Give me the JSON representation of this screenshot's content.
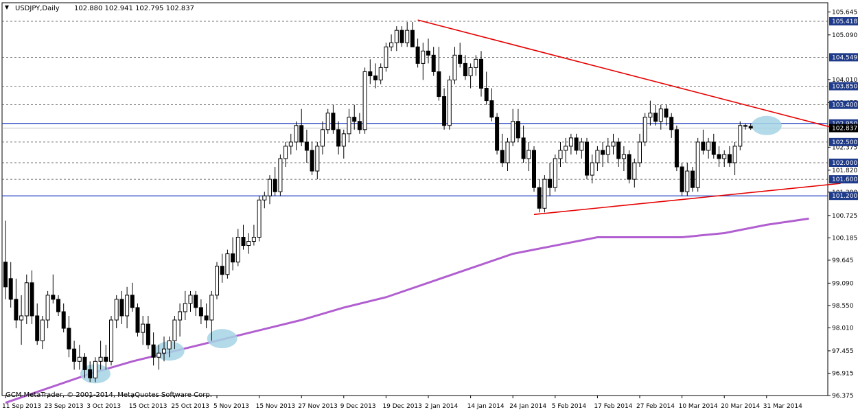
{
  "header": {
    "symbol": "USDJPY,Daily",
    "ohlc": "102.880 102.941 102.795 102.837"
  },
  "footer": {
    "copyright": "GCM MetaTrader, © 2001-2014, MetaQuotes Software Corp."
  },
  "colors": {
    "bull_fill": "#ffffff",
    "bear_fill": "#000000",
    "candle_outline": "#000000",
    "trendline": "#e60000",
    "support_line": "#2040c0",
    "moving_average": "#b15fd0",
    "highlight": "#a6d4e4",
    "level_line": "#444444",
    "level_label_bg": "#1e3a8a",
    "current_price_bg": "#000000"
  },
  "chart_data": {
    "type": "candlestick",
    "y_range": [
      96.375,
      105.8
    ],
    "y_ticks": [
      "105.645",
      "105.090",
      "104.010",
      "103.455",
      "102.375",
      "101.820",
      "101.290",
      "100.725",
      "100.185",
      "99.645",
      "99.090",
      "98.550",
      "98.010",
      "97.455",
      "96.915",
      "96.375"
    ],
    "x_ticks": [
      {
        "label": "11 Sep 2013",
        "x": 0
      },
      {
        "label": "23 Sep 2013",
        "x": 8
      },
      {
        "label": "3 Oct 2013",
        "x": 16
      },
      {
        "label": "15 Oct 2013",
        "x": 24
      },
      {
        "label": "25 Oct 2013",
        "x": 32
      },
      {
        "label": "5 Nov 2013",
        "x": 40
      },
      {
        "label": "15 Nov 2013",
        "x": 48
      },
      {
        "label": "27 Nov 2013",
        "x": 56
      },
      {
        "label": "9 Dec 2013",
        "x": 64
      },
      {
        "label": "19 Dec 2013",
        "x": 72
      },
      {
        "label": "2 Jan 2014",
        "x": 80
      },
      {
        "label": "14 Jan 2014",
        "x": 88
      },
      {
        "label": "24 Jan 2014",
        "x": 96
      },
      {
        "label": "5 Feb 2014",
        "x": 104
      },
      {
        "label": "17 Feb 2014",
        "x": 112
      },
      {
        "label": "27 Feb 2014",
        "x": 120
      },
      {
        "label": "10 Mar 2014",
        "x": 128
      },
      {
        "label": "20 Mar 2014",
        "x": 136
      },
      {
        "label": "31 Mar 2014",
        "x": 144
      }
    ],
    "horizontal_levels": [
      {
        "label": "105.418",
        "value": 105.418,
        "style": "dashed"
      },
      {
        "label": "104.549",
        "value": 104.549,
        "style": "dashed"
      },
      {
        "label": "103.850",
        "value": 103.85,
        "style": "dashed"
      },
      {
        "label": "103.400",
        "value": 103.4,
        "style": "dashed"
      },
      {
        "label": "102.950",
        "value": 102.95,
        "style": "solid-blue"
      },
      {
        "label": "102.500",
        "value": 102.5,
        "style": "dashed"
      },
      {
        "label": "102.000",
        "value": 102.0,
        "style": "dashed"
      },
      {
        "label": "101.600",
        "value": 101.6,
        "style": "dashed"
      },
      {
        "label": "101.200",
        "value": 101.2,
        "style": "solid-blue"
      }
    ],
    "current_price": {
      "label": "102.837",
      "value": 102.837
    },
    "candles": [
      [
        99.6,
        100.6,
        98.7,
        99.0
      ],
      [
        99.2,
        99.6,
        98.5,
        98.7
      ],
      [
        98.7,
        99.2,
        98.0,
        98.2
      ],
      [
        98.2,
        98.8,
        97.6,
        98.3
      ],
      [
        98.3,
        99.3,
        98.1,
        99.1
      ],
      [
        99.1,
        99.4,
        98.1,
        98.3
      ],
      [
        98.3,
        98.6,
        97.6,
        97.7
      ],
      [
        97.7,
        98.3,
        97.5,
        98.2
      ],
      [
        98.2,
        98.9,
        98.0,
        98.8
      ],
      [
        98.8,
        99.3,
        98.6,
        98.7
      ],
      [
        98.7,
        98.8,
        98.3,
        98.4
      ],
      [
        98.4,
        98.6,
        97.9,
        98.0
      ],
      [
        98.0,
        98.3,
        97.3,
        97.5
      ],
      [
        97.5,
        97.7,
        97.0,
        97.2
      ],
      [
        97.2,
        97.6,
        97.0,
        97.3
      ],
      [
        97.3,
        97.4,
        96.8,
        97.0
      ],
      [
        97.0,
        97.2,
        96.7,
        96.8
      ],
      [
        96.8,
        97.3,
        96.7,
        97.2
      ],
      [
        97.2,
        97.7,
        97.0,
        97.3
      ],
      [
        97.3,
        97.6,
        97.0,
        97.2
      ],
      [
        97.2,
        98.3,
        97.1,
        98.2
      ],
      [
        98.2,
        98.8,
        98.0,
        98.7
      ],
      [
        98.7,
        98.9,
        98.1,
        98.3
      ],
      [
        98.3,
        99.0,
        98.0,
        98.8
      ],
      [
        98.8,
        99.1,
        98.4,
        98.5
      ],
      [
        98.5,
        98.6,
        97.8,
        97.9
      ],
      [
        97.9,
        98.3,
        97.6,
        98.1
      ],
      [
        98.1,
        98.3,
        97.5,
        97.6
      ],
      [
        97.6,
        97.9,
        97.1,
        97.3
      ],
      [
        97.3,
        97.6,
        97.0,
        97.4
      ],
      [
        97.4,
        97.8,
        97.2,
        97.5
      ],
      [
        97.5,
        97.8,
        97.3,
        97.7
      ],
      [
        97.7,
        98.3,
        97.5,
        98.2
      ],
      [
        98.2,
        98.6,
        97.8,
        98.4
      ],
      [
        98.4,
        98.9,
        98.2,
        98.6
      ],
      [
        98.6,
        98.9,
        98.4,
        98.8
      ],
      [
        98.8,
        98.9,
        98.3,
        98.5
      ],
      [
        98.5,
        98.7,
        98.1,
        98.3
      ],
      [
        98.3,
        98.6,
        98.0,
        98.2
      ],
      [
        98.2,
        98.9,
        97.7,
        98.8
      ],
      [
        98.8,
        99.6,
        98.7,
        99.5
      ],
      [
        99.5,
        99.8,
        99.1,
        99.3
      ],
      [
        99.3,
        99.9,
        99.2,
        99.8
      ],
      [
        99.8,
        100.2,
        99.4,
        99.6
      ],
      [
        99.6,
        100.4,
        99.5,
        100.2
      ],
      [
        100.2,
        100.5,
        99.9,
        100.0
      ],
      [
        100.0,
        100.3,
        99.8,
        100.1
      ],
      [
        100.1,
        100.5,
        100.0,
        100.2
      ],
      [
        100.2,
        101.2,
        100.1,
        101.1
      ],
      [
        101.1,
        101.3,
        100.9,
        101.2
      ],
      [
        101.2,
        101.7,
        101.0,
        101.6
      ],
      [
        101.6,
        101.9,
        101.2,
        101.3
      ],
      [
        101.3,
        102.2,
        101.2,
        102.1
      ],
      [
        102.1,
        102.5,
        101.9,
        102.4
      ],
      [
        102.4,
        102.7,
        102.2,
        102.5
      ],
      [
        102.5,
        103.0,
        102.3,
        102.9
      ],
      [
        102.9,
        103.3,
        102.4,
        102.5
      ],
      [
        102.5,
        102.8,
        102.0,
        102.3
      ],
      [
        102.3,
        102.5,
        101.7,
        101.8
      ],
      [
        101.8,
        102.5,
        101.6,
        102.4
      ],
      [
        102.4,
        103.0,
        102.2,
        102.8
      ],
      [
        102.8,
        103.3,
        102.7,
        103.2
      ],
      [
        103.2,
        103.4,
        102.7,
        102.8
      ],
      [
        102.8,
        103.0,
        102.2,
        102.4
      ],
      [
        102.4,
        102.8,
        102.1,
        102.7
      ],
      [
        102.7,
        103.3,
        102.5,
        103.1
      ],
      [
        103.1,
        103.4,
        102.8,
        103.0
      ],
      [
        103.0,
        103.2,
        102.7,
        102.8
      ],
      [
        102.8,
        104.3,
        102.7,
        104.2
      ],
      [
        104.2,
        104.5,
        103.9,
        104.1
      ],
      [
        104.1,
        104.4,
        103.8,
        104.0
      ],
      [
        104.0,
        104.4,
        103.9,
        104.3
      ],
      [
        104.3,
        104.9,
        104.2,
        104.8
      ],
      [
        104.8,
        105.1,
        104.7,
        104.9
      ],
      [
        104.9,
        105.3,
        104.7,
        105.2
      ],
      [
        105.2,
        105.3,
        104.8,
        104.9
      ],
      [
        104.9,
        105.4,
        104.8,
        105.2
      ],
      [
        105.2,
        105.4,
        104.8,
        104.8
      ],
      [
        104.8,
        105.0,
        104.3,
        104.4
      ],
      [
        104.4,
        104.9,
        104.0,
        104.7
      ],
      [
        104.7,
        105.0,
        104.4,
        104.6
      ],
      [
        104.6,
        104.8,
        104.1,
        104.2
      ],
      [
        104.2,
        104.8,
        103.5,
        103.6
      ],
      [
        103.6,
        103.8,
        102.8,
        102.9
      ],
      [
        102.9,
        104.1,
        102.8,
        104.0
      ],
      [
        104.0,
        104.8,
        103.9,
        104.6
      ],
      [
        104.6,
        104.9,
        104.3,
        104.4
      ],
      [
        104.4,
        104.6,
        104.0,
        104.1
      ],
      [
        104.1,
        104.4,
        103.8,
        104.3
      ],
      [
        104.3,
        104.6,
        104.1,
        104.5
      ],
      [
        104.5,
        104.7,
        103.6,
        103.8
      ],
      [
        103.8,
        104.2,
        103.4,
        103.5
      ],
      [
        103.5,
        103.8,
        103.0,
        103.1
      ],
      [
        103.1,
        103.2,
        102.2,
        102.3
      ],
      [
        102.3,
        102.7,
        101.9,
        102.0
      ],
      [
        102.0,
        102.6,
        101.8,
        102.5
      ],
      [
        102.5,
        103.3,
        102.4,
        103.0
      ],
      [
        103.0,
        103.3,
        102.5,
        102.6
      ],
      [
        102.6,
        102.9,
        102.0,
        102.1
      ],
      [
        102.1,
        102.5,
        101.8,
        102.3
      ],
      [
        102.3,
        102.4,
        101.3,
        101.4
      ],
      [
        101.4,
        101.6,
        100.8,
        100.9
      ],
      [
        100.9,
        101.7,
        100.8,
        101.6
      ],
      [
        101.6,
        102.0,
        101.2,
        101.4
      ],
      [
        101.4,
        102.2,
        101.3,
        102.1
      ],
      [
        102.1,
        102.5,
        101.9,
        102.3
      ],
      [
        102.3,
        102.6,
        102.0,
        102.4
      ],
      [
        102.4,
        102.7,
        102.2,
        102.6
      ],
      [
        102.6,
        102.7,
        102.2,
        102.3
      ],
      [
        102.3,
        102.6,
        102.1,
        102.5
      ],
      [
        102.5,
        102.6,
        101.6,
        101.7
      ],
      [
        101.7,
        102.2,
        101.5,
        102.0
      ],
      [
        102.0,
        102.4,
        101.8,
        102.3
      ],
      [
        102.3,
        102.5,
        101.9,
        102.2
      ],
      [
        102.2,
        102.6,
        102.0,
        102.4
      ],
      [
        102.4,
        102.7,
        102.2,
        102.5
      ],
      [
        102.5,
        102.6,
        101.9,
        102.1
      ],
      [
        102.1,
        102.4,
        101.8,
        102.2
      ],
      [
        102.2,
        102.3,
        101.5,
        101.6
      ],
      [
        101.6,
        102.1,
        101.4,
        102.0
      ],
      [
        102.0,
        102.7,
        101.9,
        102.5
      ],
      [
        102.5,
        103.2,
        102.4,
        103.1
      ],
      [
        103.1,
        103.5,
        102.9,
        103.2
      ],
      [
        103.2,
        103.4,
        102.9,
        103.0
      ],
      [
        103.0,
        103.4,
        102.8,
        103.3
      ],
      [
        103.3,
        103.4,
        102.9,
        103.1
      ],
      [
        103.1,
        103.2,
        102.6,
        102.8
      ],
      [
        102.8,
        102.9,
        101.8,
        101.9
      ],
      [
        101.9,
        102.0,
        101.2,
        101.3
      ],
      [
        101.3,
        102.0,
        101.2,
        101.8
      ],
      [
        101.8,
        101.9,
        101.3,
        101.4
      ],
      [
        101.4,
        102.6,
        101.3,
        102.5
      ],
      [
        102.5,
        102.8,
        102.2,
        102.3
      ],
      [
        102.3,
        102.6,
        102.1,
        102.5
      ],
      [
        102.5,
        102.7,
        102.1,
        102.2
      ],
      [
        102.2,
        102.4,
        101.9,
        102.1
      ],
      [
        102.1,
        102.3,
        101.9,
        102.2
      ],
      [
        102.2,
        102.4,
        101.9,
        102.0
      ],
      [
        102.0,
        102.5,
        101.7,
        102.4
      ],
      [
        102.4,
        103.0,
        102.3,
        102.9
      ],
      [
        102.9,
        102.94,
        102.8,
        102.88
      ],
      [
        102.88,
        102.941,
        102.795,
        102.837
      ]
    ],
    "moving_average": [
      [
        0,
        96.2
      ],
      [
        8,
        96.55
      ],
      [
        16,
        96.9
      ],
      [
        24,
        97.2
      ],
      [
        32,
        97.45
      ],
      [
        40,
        97.7
      ],
      [
        48,
        97.95
      ],
      [
        56,
        98.2
      ],
      [
        64,
        98.5
      ],
      [
        72,
        98.75
      ],
      [
        80,
        99.1
      ],
      [
        88,
        99.45
      ],
      [
        96,
        99.8
      ],
      [
        104,
        100.0
      ],
      [
        112,
        100.2
      ],
      [
        120,
        100.2
      ],
      [
        128,
        100.2
      ],
      [
        136,
        100.3
      ],
      [
        144,
        100.5
      ],
      [
        152,
        100.65
      ]
    ],
    "trendlines": [
      {
        "name": "resistance",
        "x1": 78,
        "y1": 105.45,
        "x2": 158,
        "y2": 102.8
      },
      {
        "name": "support",
        "x1": 100,
        "y1": 100.75,
        "x2": 158,
        "y2": 101.5
      }
    ],
    "highlights": [
      {
        "x": 17,
        "y": 96.9
      },
      {
        "x": 31,
        "y": 97.45
      },
      {
        "x": 41,
        "y": 97.75
      },
      {
        "x": 144,
        "y": 102.9
      }
    ]
  }
}
